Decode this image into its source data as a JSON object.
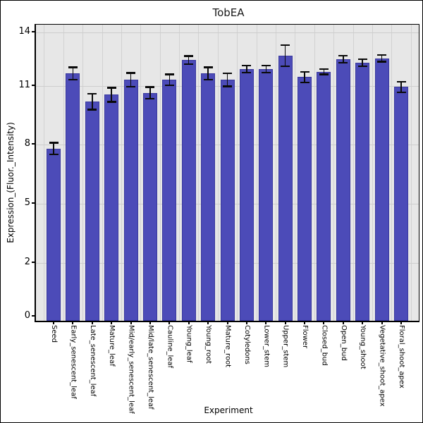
{
  "chart_data": {
    "type": "bar",
    "title": "TobEA",
    "xlabel": "Experiment",
    "ylabel": "Expression_(Fluor._Intensity)",
    "categories": [
      "Seed",
      "Early_senescent_leaf",
      "Late_senescent_leaf",
      "Mature_leaf",
      "Mid/early_senescent_leaf",
      "Mid/late_senescent_leaf",
      "Cauline_leaf",
      "Young_leaf",
      "Young_root",
      "Mature_root",
      "Cotyledons",
      "Lower_stem",
      "Upper_stem",
      "Flower",
      "Closed_bud",
      "Open_bud",
      "Young_shoot",
      "Vegetative_shoot_apex",
      "Floral_shoot_apex"
    ],
    "values": [
      7.8,
      11.7,
      10.2,
      10.55,
      11.35,
      10.65,
      11.35,
      12.45,
      11.7,
      11.35,
      11.95,
      11.95,
      12.7,
      11.5,
      11.8,
      12.5,
      12.3,
      12.55,
      10.95
    ],
    "errors": [
      0.3,
      0.35,
      0.4,
      0.36,
      0.38,
      0.3,
      0.3,
      0.22,
      0.35,
      0.37,
      0.19,
      0.2,
      0.6,
      0.3,
      0.14,
      0.19,
      0.2,
      0.19,
      0.28
    ],
    "y_ticks": [
      0,
      2,
      5,
      8,
      11,
      14
    ],
    "ylim": [
      0,
      14.6
    ],
    "grid": true,
    "legend": false,
    "error_bars": true,
    "colors": {
      "bar_fill": "#4c4bb8",
      "bar_edge": "#3a399e",
      "plot_background": "#e7e7e7",
      "gridline": "#cdcdcd",
      "error_bar": "#0a0a0a",
      "text": "#000000",
      "figure_background": "#ffffff"
    }
  }
}
